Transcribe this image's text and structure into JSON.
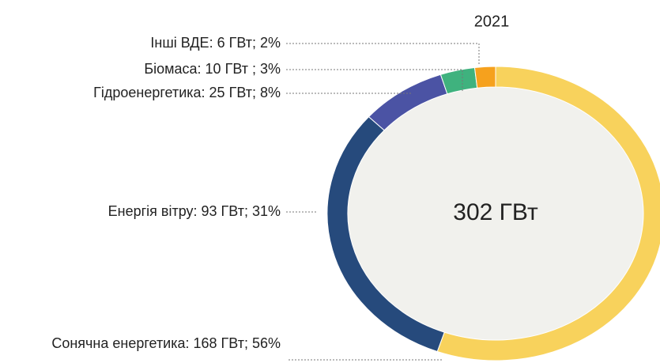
{
  "chart_data": {
    "type": "donut",
    "title": "2021",
    "center_label": "302 ГВт",
    "values": [
      168,
      93,
      25,
      10,
      6
    ],
    "value_labels": [
      "Сонячна енергетика: 168 ГВт; 56%",
      "Енергія вітру: 93 ГВт; 31%",
      "Гідроенергетика: 25 ГВт; 8%",
      "Біомаса: 10 ГВт ; 3%",
      "Інші ВДЕ: 6 ГВт; 2%"
    ],
    "colors": [
      "#f8d25c",
      "#264a7c",
      "#4b53a4",
      "#3fb27e",
      "#f6a11d"
    ]
  }
}
